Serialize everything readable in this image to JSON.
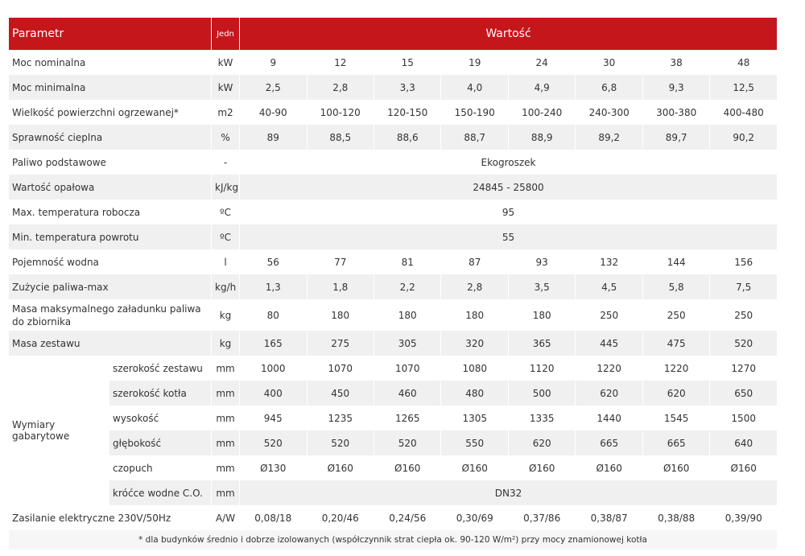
{
  "header": {
    "param": "Parametr",
    "unit": "Jedn",
    "value": "Wartość"
  },
  "colors": {
    "header_bg": "#c5161c",
    "stripe": "#f0f0f0"
  },
  "rows": [
    {
      "label": "Moc nominalna",
      "unit": "kW",
      "values": [
        "9",
        "12",
        "15",
        "19",
        "24",
        "30",
        "38",
        "48"
      ]
    },
    {
      "label": "Moc minimalna",
      "unit": "kW",
      "values": [
        "2,5",
        "2,8",
        "3,3",
        "4,0",
        "4,9",
        "6,8",
        "9,3",
        "12,5"
      ]
    },
    {
      "label": "Wielkość powierzchni ogrzewanej*",
      "unit": "m2",
      "values": [
        "40-90",
        "100-120",
        "120-150",
        "150-190",
        "100-240",
        "240-300",
        "300-380",
        "400-480"
      ]
    },
    {
      "label": "Sprawność cieplna",
      "unit": "%",
      "values": [
        "89",
        "88,5",
        "88,6",
        "88,7",
        "88,9",
        "89,2",
        "89,7",
        "90,2"
      ]
    },
    {
      "label": "Paliwo podstawowe",
      "unit": "-",
      "merged": "Ekogroszek"
    },
    {
      "label": "Wartość opałowa",
      "unit": "kJ/kg",
      "merged": "24845 - 25800"
    },
    {
      "label": "Max. temperatura robocza",
      "unit": "ºC",
      "merged": "95"
    },
    {
      "label": "Min. temperatura powrotu",
      "unit": "ºC",
      "merged": "55"
    },
    {
      "label": "Pojemność wodna",
      "unit": "l",
      "values": [
        "56",
        "77",
        "81",
        "87",
        "93",
        "132",
        "144",
        "156"
      ]
    },
    {
      "label": "Zużycie paliwa-max",
      "unit": "kg/h",
      "values": [
        "1,3",
        "1,8",
        "2,2",
        "2,8",
        "3,5",
        "4,5",
        "5,8",
        "7,5"
      ]
    },
    {
      "label": "Masa maksymalnego załadunku paliwa do zbiornika",
      "unit": "kg",
      "values": [
        "80",
        "180",
        "180",
        "180",
        "180",
        "250",
        "250",
        "250"
      ],
      "tall": true
    },
    {
      "label": "Masa zestawu",
      "unit": "kg",
      "values": [
        "165",
        "275",
        "305",
        "320",
        "365",
        "445",
        "475",
        "520"
      ]
    }
  ],
  "dimensions": {
    "label": "Wymiary gabarytowe",
    "rows": [
      {
        "label": "szerokość zestawu",
        "unit": "mm",
        "values": [
          "1000",
          "1070",
          "1070",
          "1080",
          "1120",
          "1220",
          "1220",
          "1270"
        ]
      },
      {
        "label": "szerokość kotła",
        "unit": "mm",
        "values": [
          "400",
          "450",
          "460",
          "480",
          "500",
          "620",
          "620",
          "650"
        ]
      },
      {
        "label": "wysokość",
        "unit": "mm",
        "values": [
          "945",
          "1235",
          "1265",
          "1305",
          "1335",
          "1440",
          "1545",
          "1500"
        ]
      },
      {
        "label": "głębokość",
        "unit": "mm",
        "values": [
          "520",
          "520",
          "520",
          "550",
          "620",
          "665",
          "665",
          "640"
        ]
      },
      {
        "label": "czopuch",
        "unit": "mm",
        "values": [
          "Ø130",
          "Ø160",
          "Ø160",
          "Ø160",
          "Ø160",
          "Ø160",
          "Ø160",
          "Ø160"
        ]
      },
      {
        "label": "króćce wodne C.O.",
        "unit": "mm",
        "merged": "DN32"
      }
    ]
  },
  "power_row": {
    "label": "Zasilanie elektryczne 230V/50Hz",
    "unit": "A/W",
    "values": [
      "0,08/18",
      "0,20/46",
      "0,24/56",
      "0,30/69",
      "0,37/86",
      "0,38/87",
      "0,38/88",
      "0,39/90"
    ]
  },
  "footnote": "* dla budynków średnio i dobrze izolowanych (współczynnik strat ciepła ok. 90-120 W/m²) przy mocy znamionowej kotła"
}
